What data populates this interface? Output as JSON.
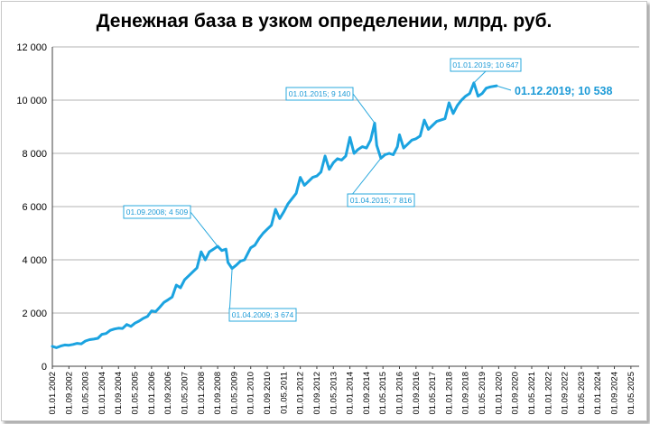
{
  "chart_data": {
    "type": "line",
    "title": "Денежная база в узком определении, млрд. руб.",
    "xlabel": "",
    "ylabel": "",
    "ylim": [
      0,
      12000
    ],
    "yticks": [
      0,
      2000,
      4000,
      6000,
      8000,
      10000,
      12000
    ],
    "ytick_labels": [
      "0",
      "2 000",
      "4 000",
      "6 000",
      "8 000",
      "10 000",
      "12 000"
    ],
    "xlim": [
      "2002-01-01",
      "2025-09-01"
    ],
    "xtick_labels": [
      "01.01.2002",
      "01.09.2002",
      "01.05.2003",
      "01.01.2004",
      "01.09.2004",
      "01.05.2005",
      "01.01.2006",
      "01.09.2006",
      "01.05.2007",
      "01.01.2008",
      "01.09.2008",
      "01.05.2009",
      "01.01.2010",
      "01.09.2010",
      "01.05.2011",
      "01.01.2012",
      "01.09.2012",
      "01.05.2013",
      "01.01.2014",
      "01.09.2014",
      "01.05.2015",
      "01.01.2016",
      "01.09.2016",
      "01.05.2017",
      "01.01.2018",
      "01.09.2018",
      "01.05.2019",
      "01.01.2020",
      "01.09.2020",
      "01.05.2021",
      "01.01.2022",
      "01.09.2022",
      "01.05.2023",
      "01.01.2024",
      "01.09.2024",
      "01.05.2025"
    ],
    "grid": true,
    "legend": "none",
    "series_color": "#1ba3e0",
    "series": [
      {
        "points": [
          [
            "2002-01-01",
            750
          ],
          [
            "2002-03-01",
            700
          ],
          [
            "2002-05-01",
            760
          ],
          [
            "2002-07-01",
            800
          ],
          [
            "2002-09-01",
            790
          ],
          [
            "2002-11-01",
            820
          ],
          [
            "2003-01-01",
            860
          ],
          [
            "2003-03-01",
            840
          ],
          [
            "2003-05-01",
            950
          ],
          [
            "2003-07-01",
            1000
          ],
          [
            "2003-09-01",
            1020
          ],
          [
            "2003-11-01",
            1050
          ],
          [
            "2004-01-01",
            1200
          ],
          [
            "2004-03-01",
            1230
          ],
          [
            "2004-05-01",
            1350
          ],
          [
            "2004-07-01",
            1400
          ],
          [
            "2004-09-01",
            1430
          ],
          [
            "2004-11-01",
            1420
          ],
          [
            "2005-01-01",
            1570
          ],
          [
            "2005-03-01",
            1500
          ],
          [
            "2005-05-01",
            1620
          ],
          [
            "2005-07-01",
            1700
          ],
          [
            "2005-09-01",
            1800
          ],
          [
            "2005-11-01",
            1870
          ],
          [
            "2006-01-01",
            2080
          ],
          [
            "2006-03-01",
            2050
          ],
          [
            "2006-05-01",
            2220
          ],
          [
            "2006-07-01",
            2400
          ],
          [
            "2006-09-01",
            2500
          ],
          [
            "2006-11-01",
            2600
          ],
          [
            "2007-01-01",
            3050
          ],
          [
            "2007-03-01",
            2950
          ],
          [
            "2007-05-01",
            3250
          ],
          [
            "2007-07-01",
            3400
          ],
          [
            "2007-09-01",
            3550
          ],
          [
            "2007-11-01",
            3700
          ],
          [
            "2008-01-01",
            4300
          ],
          [
            "2008-03-01",
            4000
          ],
          [
            "2008-05-01",
            4300
          ],
          [
            "2008-07-01",
            4400
          ],
          [
            "2008-09-01",
            4509
          ],
          [
            "2008-11-01",
            4350
          ],
          [
            "2009-01-01",
            4400
          ],
          [
            "2009-02-01",
            3900
          ],
          [
            "2009-04-01",
            3674
          ],
          [
            "2009-06-01",
            3800
          ],
          [
            "2009-08-01",
            3950
          ],
          [
            "2009-10-01",
            4000
          ],
          [
            "2009-12-01",
            4300
          ],
          [
            "2010-01-01",
            4450
          ],
          [
            "2010-03-01",
            4550
          ],
          [
            "2010-05-01",
            4800
          ],
          [
            "2010-07-01",
            5000
          ],
          [
            "2010-09-01",
            5150
          ],
          [
            "2010-11-01",
            5300
          ],
          [
            "2011-01-01",
            5900
          ],
          [
            "2011-03-01",
            5550
          ],
          [
            "2011-05-01",
            5800
          ],
          [
            "2011-07-01",
            6100
          ],
          [
            "2011-09-01",
            6300
          ],
          [
            "2011-11-01",
            6500
          ],
          [
            "2012-01-01",
            7100
          ],
          [
            "2012-03-01",
            6800
          ],
          [
            "2012-05-01",
            6950
          ],
          [
            "2012-07-01",
            7100
          ],
          [
            "2012-09-01",
            7150
          ],
          [
            "2012-11-01",
            7300
          ],
          [
            "2013-01-01",
            7900
          ],
          [
            "2013-03-01",
            7400
          ],
          [
            "2013-05-01",
            7650
          ],
          [
            "2013-07-01",
            7800
          ],
          [
            "2013-09-01",
            7750
          ],
          [
            "2013-11-01",
            7900
          ],
          [
            "2014-01-01",
            8600
          ],
          [
            "2014-03-01",
            8000
          ],
          [
            "2014-05-01",
            8150
          ],
          [
            "2014-07-01",
            8250
          ],
          [
            "2014-09-01",
            8200
          ],
          [
            "2014-11-01",
            8500
          ],
          [
            "2015-01-01",
            9140
          ],
          [
            "2015-02-01",
            8300
          ],
          [
            "2015-04-01",
            7816
          ],
          [
            "2015-06-01",
            7950
          ],
          [
            "2015-08-01",
            8000
          ],
          [
            "2015-10-01",
            7950
          ],
          [
            "2015-12-01",
            8250
          ],
          [
            "2016-01-01",
            8700
          ],
          [
            "2016-03-01",
            8200
          ],
          [
            "2016-05-01",
            8350
          ],
          [
            "2016-07-01",
            8500
          ],
          [
            "2016-09-01",
            8550
          ],
          [
            "2016-11-01",
            8650
          ],
          [
            "2017-01-01",
            9250
          ],
          [
            "2017-03-01",
            8900
          ],
          [
            "2017-05-01",
            9050
          ],
          [
            "2017-07-01",
            9200
          ],
          [
            "2017-09-01",
            9250
          ],
          [
            "2017-11-01",
            9300
          ],
          [
            "2018-01-01",
            9900
          ],
          [
            "2018-03-01",
            9500
          ],
          [
            "2018-05-01",
            9800
          ],
          [
            "2018-07-01",
            10000
          ],
          [
            "2018-09-01",
            10150
          ],
          [
            "2018-11-01",
            10250
          ],
          [
            "2019-01-01",
            10647
          ],
          [
            "2019-03-01",
            10150
          ],
          [
            "2019-05-01",
            10250
          ],
          [
            "2019-07-01",
            10450
          ],
          [
            "2019-09-01",
            10500
          ],
          [
            "2019-12-01",
            10538
          ]
        ]
      }
    ],
    "annotations": [
      {
        "text": "01.09.2008; 4 509",
        "date": "2008-09-01",
        "value": 4509
      },
      {
        "text": "01.04.2009; 3 674",
        "date": "2009-04-01",
        "value": 3674
      },
      {
        "text": "01.01.2015; 9 140",
        "date": "2015-01-01",
        "value": 9140
      },
      {
        "text": "01.04.2015; 7 816",
        "date": "2015-04-01",
        "value": 7816
      },
      {
        "text": "01.01.2019; 10 647",
        "date": "2019-01-01",
        "value": 10647
      },
      {
        "text": "01.12.2019; 10 538",
        "date": "2019-12-01",
        "value": 10538
      }
    ]
  }
}
